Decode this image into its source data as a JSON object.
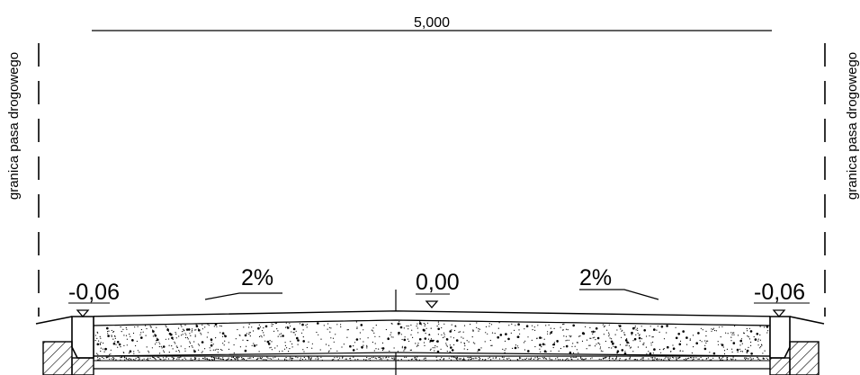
{
  "dimension": {
    "width_label": "5,000"
  },
  "boundary": {
    "left_label": "granica pasa drogowego",
    "right_label": "granica pasa drogowego"
  },
  "elevations": {
    "left": "-0,06",
    "center": "0,00",
    "right": "-0,06"
  },
  "slopes": {
    "left": "2%",
    "right": "2%"
  },
  "colors": {
    "line": "#000000",
    "background": "#ffffff"
  }
}
